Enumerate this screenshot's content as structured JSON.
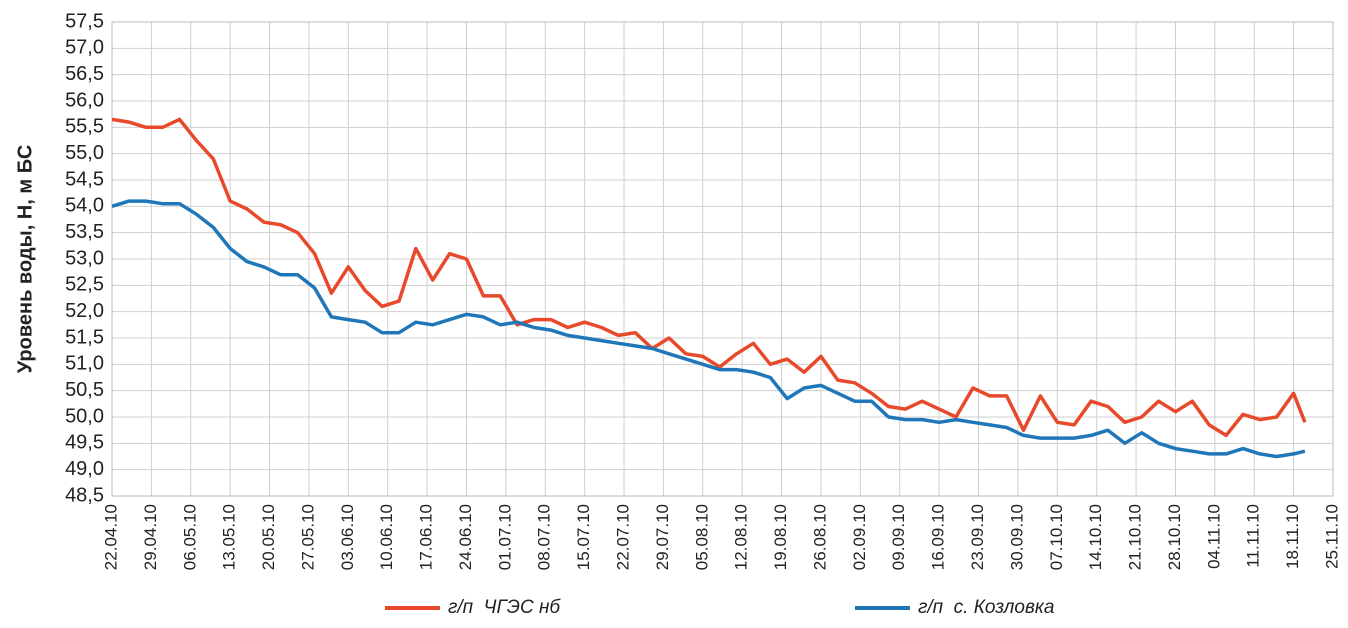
{
  "chart_data": {
    "type": "line",
    "ylabel": "Уровень воды, Н, м БС",
    "x": [
      "22.04.10",
      "25.04.10",
      "28.04.10",
      "01.05.10",
      "04.05.10",
      "07.05.10",
      "10.05.10",
      "13.05.10",
      "16.05.10",
      "19.05.10",
      "22.05.10",
      "25.05.10",
      "28.05.10",
      "31.05.10",
      "03.06.10",
      "06.06.10",
      "09.06.10",
      "12.06.10",
      "15.06.10",
      "18.06.10",
      "21.06.10",
      "24.06.10",
      "27.06.10",
      "30.06.10",
      "03.07.10",
      "06.07.10",
      "09.07.10",
      "12.07.10",
      "15.07.10",
      "18.07.10",
      "21.07.10",
      "24.07.10",
      "27.07.10",
      "30.07.10",
      "02.08.10",
      "05.08.10",
      "08.08.10",
      "11.08.10",
      "14.08.10",
      "17.08.10",
      "20.08.10",
      "23.08.10",
      "26.08.10",
      "29.08.10",
      "01.09.10",
      "04.09.10",
      "07.09.10",
      "10.09.10",
      "13.09.10",
      "16.09.10",
      "19.09.10",
      "22.09.10",
      "25.09.10",
      "28.09.10",
      "01.10.10",
      "04.10.10",
      "07.10.10",
      "10.10.10",
      "13.10.10",
      "16.10.10",
      "19.10.10",
      "22.10.10",
      "25.10.10",
      "28.10.10",
      "31.10.10",
      "03.11.10",
      "06.11.10",
      "09.11.10",
      "12.11.10",
      "15.11.10",
      "18.11.10",
      "20.11.10"
    ],
    "series": [
      {
        "name": "г/п  ЧГЭС нб",
        "color": "#e8492a",
        "values": [
          55.65,
          55.6,
          55.5,
          55.5,
          55.65,
          55.25,
          54.9,
          54.1,
          53.95,
          53.7,
          53.65,
          53.5,
          53.1,
          52.35,
          52.85,
          52.4,
          52.1,
          52.2,
          53.2,
          52.6,
          53.1,
          53.0,
          52.3,
          52.3,
          51.75,
          51.85,
          51.85,
          51.7,
          51.8,
          51.7,
          51.55,
          51.6,
          51.3,
          51.5,
          51.2,
          51.15,
          50.95,
          51.2,
          51.4,
          51.0,
          51.1,
          50.85,
          51.15,
          50.7,
          50.65,
          50.45,
          50.2,
          50.15,
          50.3,
          50.15,
          50.0,
          50.55,
          50.4,
          50.4,
          49.75,
          50.4,
          49.9,
          49.85,
          50.3,
          50.2,
          49.9,
          50.0,
          50.3,
          50.1,
          50.3,
          49.85,
          49.65,
          50.05,
          49.95,
          50.0,
          50.45,
          49.9
        ]
      },
      {
        "name": "г/п  с. Козловка",
        "color": "#1f77b9",
        "values": [
          54.0,
          54.1,
          54.1,
          54.05,
          54.05,
          53.85,
          53.6,
          53.2,
          52.95,
          52.85,
          52.7,
          52.7,
          52.45,
          51.9,
          51.85,
          51.8,
          51.6,
          51.6,
          51.8,
          51.75,
          51.85,
          51.95,
          51.9,
          51.75,
          51.8,
          51.7,
          51.65,
          51.55,
          51.5,
          51.45,
          51.4,
          51.35,
          51.3,
          51.2,
          51.1,
          51.0,
          50.9,
          50.9,
          50.85,
          50.75,
          50.35,
          50.55,
          50.6,
          50.45,
          50.3,
          50.3,
          50.0,
          49.95,
          49.95,
          49.9,
          49.95,
          49.9,
          49.85,
          49.8,
          49.65,
          49.6,
          49.6,
          49.6,
          49.65,
          49.75,
          49.5,
          49.7,
          49.5,
          49.4,
          49.35,
          49.3,
          49.3,
          49.4,
          49.3,
          49.25,
          49.3,
          49.35
        ]
      }
    ],
    "xlim": [
      "22.04.10",
      "25.11.10"
    ],
    "xticks": [
      "22.04.10",
      "29.04.10",
      "06.05.10",
      "13.05.10",
      "20.05.10",
      "27.05.10",
      "03.06.10",
      "10.06.10",
      "17.06.10",
      "24.06.10",
      "01.07.10",
      "08.07.10",
      "15.07.10",
      "22.07.10",
      "29.07.10",
      "05.08.10",
      "12.08.10",
      "19.08.10",
      "26.08.10",
      "02.09.10",
      "09.09.10",
      "16.09.10",
      "23.09.10",
      "30.09.10",
      "07.10.10",
      "14.10.10",
      "21.10.10",
      "28.10.10",
      "04.11.10",
      "11.11.10",
      "18.11.10",
      "25.11.10"
    ],
    "ylim": [
      48.5,
      57.5
    ],
    "yticks": [
      {
        "value": 48.5,
        "label": "48,5"
      },
      {
        "value": 49,
        "label": "49,0"
      },
      {
        "value": 49.5,
        "label": "49,5"
      },
      {
        "value": 50,
        "label": "50,0"
      },
      {
        "value": 50.5,
        "label": "50,5"
      },
      {
        "value": 51,
        "label": "51,0"
      },
      {
        "value": 51.5,
        "label": "51,5"
      },
      {
        "value": 52,
        "label": "52,0"
      },
      {
        "value": 52.5,
        "label": "52,5"
      },
      {
        "value": 53,
        "label": "53,0"
      },
      {
        "value": 53.5,
        "label": "53,5"
      },
      {
        "value": 54,
        "label": "54,0"
      },
      {
        "value": 54.5,
        "label": "54,5"
      },
      {
        "value": 55,
        "label": "55,0"
      },
      {
        "value": 55.5,
        "label": "55,5"
      },
      {
        "value": 56,
        "label": "56,0"
      },
      {
        "value": 56.5,
        "label": "56,5"
      },
      {
        "value": 57,
        "label": "57,0"
      },
      {
        "value": 57.5,
        "label": "57,5"
      }
    ],
    "grid": true
  }
}
